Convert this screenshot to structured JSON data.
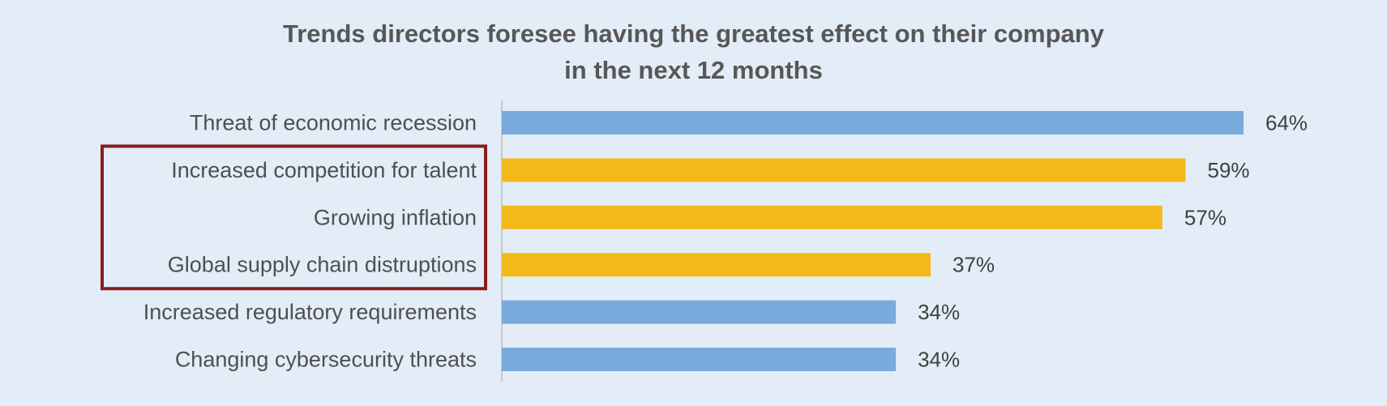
{
  "chart_data": {
    "type": "bar",
    "orientation": "horizontal",
    "title_lines": [
      "Trends directors foresee having the greatest effect on their company",
      "in the next 12 months"
    ],
    "categories": [
      "Threat of economic recession",
      "Increased competition for talent",
      "Growing inflation",
      "Global supply chain distruptions",
      "Increased regulatory requirements",
      "Changing cybersecurity threats"
    ],
    "values": [
      64,
      59,
      57,
      37,
      34,
      34
    ],
    "value_labels": [
      "64%",
      "59%",
      "57%",
      "37%",
      "34%",
      "34%"
    ],
    "highlighted": [
      false,
      true,
      true,
      true,
      false,
      false
    ],
    "highlight_group": [
      1,
      2,
      3
    ],
    "xlim": [
      0,
      64
    ],
    "grid": false,
    "legend": "none"
  },
  "colors": {
    "background": "#e3edf7",
    "bar_default": "#79aadb",
    "bar_highlight": "#f5b819",
    "highlight_box": "#8b1c1c",
    "axis": "#c8c8c8"
  }
}
